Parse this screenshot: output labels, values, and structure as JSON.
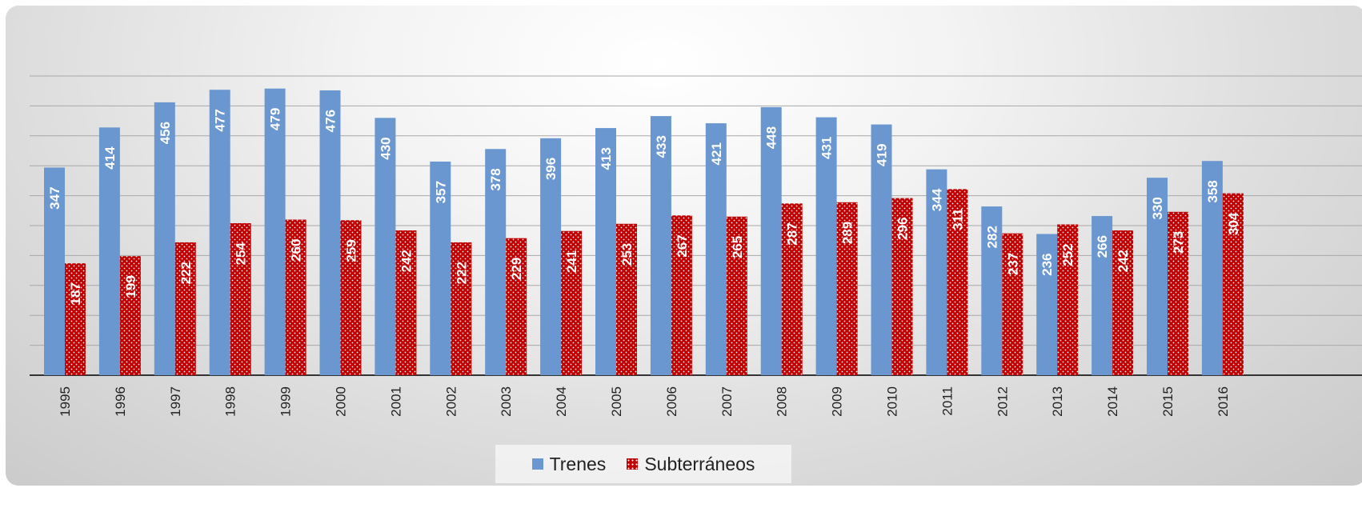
{
  "chart_data": {
    "type": "bar",
    "categories": [
      "1995",
      "1996",
      "1997",
      "1998",
      "1999",
      "2000",
      "2001",
      "2002",
      "2003",
      "2004",
      "2005",
      "2006",
      "2007",
      "2008",
      "2009",
      "2010",
      "2011",
      "2012",
      "2013",
      "2014",
      "2015",
      "2016"
    ],
    "series": [
      {
        "name": "Trenes",
        "values": [
          347,
          414,
          456,
          477,
          479,
          476,
          430,
          357,
          378,
          396,
          413,
          433,
          421,
          448,
          431,
          419,
          344,
          282,
          236,
          266,
          330,
          358
        ],
        "color": "#6a97d0"
      },
      {
        "name": "Subterráneos",
        "values": [
          187,
          199,
          222,
          254,
          260,
          259,
          242,
          222,
          229,
          241,
          253,
          267,
          265,
          287,
          289,
          296,
          311,
          237,
          252,
          242,
          273,
          304
        ],
        "color": "#c00000"
      }
    ],
    "ylim": [
      0,
      500
    ],
    "grid": true,
    "legend_position": "bottom",
    "data_labels": true
  }
}
